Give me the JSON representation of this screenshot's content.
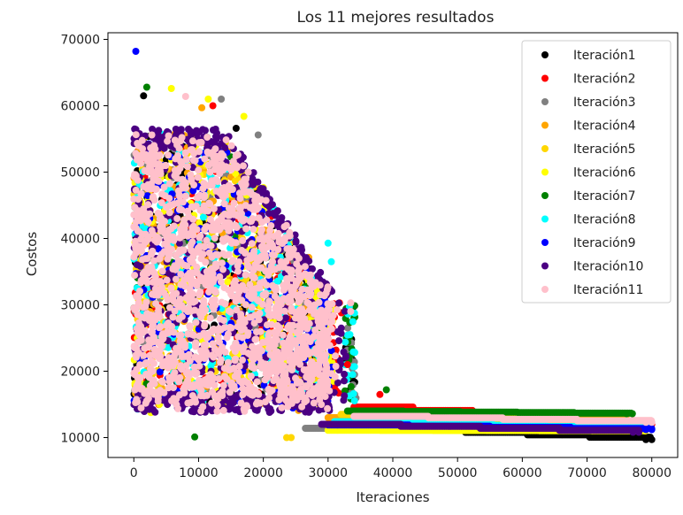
{
  "chart_data": {
    "type": "scatter",
    "title": "Los 11 mejores resultados",
    "xlabel": "Iteraciones",
    "ylabel": "Costos",
    "xlim": [
      -4000,
      84000
    ],
    "ylim": [
      7000,
      71000
    ],
    "xticks": [
      0,
      10000,
      20000,
      30000,
      40000,
      50000,
      60000,
      70000,
      80000
    ],
    "yticks": [
      10000,
      20000,
      30000,
      40000,
      50000,
      60000,
      70000
    ],
    "legend_position": "upper-right",
    "series": [
      {
        "name": "Iteración1",
        "color": "#000000",
        "end_x": 80000,
        "end_y": 9700,
        "plateau_y": 11500,
        "plateau_start": 32000
      },
      {
        "name": "Iteración2",
        "color": "#ff0000",
        "end_x": 80000,
        "end_y": 12000,
        "plateau_y": 14600,
        "plateau_start": 34000
      },
      {
        "name": "Iteración3",
        "color": "#808080",
        "end_x": 78000,
        "end_y": 11600,
        "plateau_y": 11400,
        "plateau_start": 26500
      },
      {
        "name": "Iteración4",
        "color": "#ffa500",
        "end_x": 76000,
        "end_y": 13000,
        "plateau_y": 13000,
        "plateau_start": 30000
      },
      {
        "name": "Iteración5",
        "color": "#ffd700",
        "end_x": 77000,
        "end_y": 11800,
        "plateau_y": 13500,
        "plateau_start": 32000
      },
      {
        "name": "Iteración6",
        "color": "#ffff00",
        "end_x": 79000,
        "end_y": 11000,
        "plateau_y": 11100,
        "plateau_start": 30000
      },
      {
        "name": "Iteración7",
        "color": "#008000",
        "end_x": 77000,
        "end_y": 13600,
        "plateau_y": 14000,
        "plateau_start": 33000
      },
      {
        "name": "Iteración8",
        "color": "#00ffff",
        "end_x": 80000,
        "end_y": 11300,
        "plateau_y": 12400,
        "plateau_start": 31000
      },
      {
        "name": "Iteración9",
        "color": "#0000ff",
        "end_x": 80000,
        "end_y": 11200,
        "plateau_y": 11900,
        "plateau_start": 30000
      },
      {
        "name": "Iteración10",
        "color": "#4b0082",
        "end_x": 78000,
        "end_y": 10800,
        "plateau_y": 12000,
        "plateau_start": 29000
      },
      {
        "name": "Iteración11",
        "color": "#ffc0cb",
        "end_x": 80000,
        "end_y": 12300,
        "plateau_y": 13200,
        "plateau_start": 34000
      }
    ],
    "outliers": [
      {
        "series": 8,
        "x": 300,
        "y": 68200
      },
      {
        "series": 6,
        "x": 2000,
        "y": 62800
      },
      {
        "series": 5,
        "x": 5800,
        "y": 62600
      },
      {
        "series": 0,
        "x": 1500,
        "y": 61500
      },
      {
        "series": 2,
        "x": 13500,
        "y": 61000
      },
      {
        "series": 10,
        "x": 8000,
        "y": 61400
      },
      {
        "series": 5,
        "x": 11500,
        "y": 61000
      },
      {
        "series": 1,
        "x": 12200,
        "y": 60000
      },
      {
        "series": 3,
        "x": 10500,
        "y": 59700
      },
      {
        "series": 5,
        "x": 17000,
        "y": 58400
      },
      {
        "series": 0,
        "x": 15800,
        "y": 56600
      },
      {
        "series": 2,
        "x": 19200,
        "y": 55600
      },
      {
        "series": 1,
        "x": 33000,
        "y": 21000
      },
      {
        "series": 6,
        "x": 9400,
        "y": 10100
      },
      {
        "series": 4,
        "x": 23600,
        "y": 10000
      },
      {
        "series": 4,
        "x": 24300,
        "y": 10000
      },
      {
        "series": 1,
        "x": 38000,
        "y": 16500
      },
      {
        "series": 6,
        "x": 39000,
        "y": 17200
      },
      {
        "series": 7,
        "x": 30000,
        "y": 39300
      },
      {
        "series": 7,
        "x": 30500,
        "y": 36500
      },
      {
        "series": 10,
        "x": 33500,
        "y": 30300
      },
      {
        "series": 10,
        "x": 33500,
        "y": 29000
      }
    ]
  }
}
